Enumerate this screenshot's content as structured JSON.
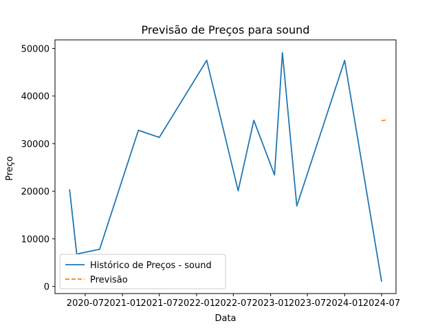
{
  "chart_data": {
    "type": "line",
    "title": "Previsão de Preços para sound",
    "xlabel": "Data",
    "ylabel": "Preço",
    "x_ticks": [
      "2020-07",
      "2021-01",
      "2021-07",
      "2022-01",
      "2022-07",
      "2023-01",
      "2023-07",
      "2024-01",
      "2024-07"
    ],
    "y_ticks": [
      "0",
      "10000",
      "20000",
      "30000",
      "40000",
      "50000"
    ],
    "ylim": [
      -1500,
      51800
    ],
    "xlim": [
      "2020-02-03",
      "2024-09-10"
    ],
    "legend_position": "lower-left",
    "grid": false,
    "series": [
      {
        "name": "Histórico de Preços - sound",
        "color": "#1f77b4",
        "dash": "solid",
        "points": [
          {
            "date": "2020-04-15",
            "value": 20400
          },
          {
            "date": "2020-05-20",
            "value": 6800
          },
          {
            "date": "2020-09-10",
            "value": 7800
          },
          {
            "date": "2021-03-20",
            "value": 32800
          },
          {
            "date": "2021-07-01",
            "value": 31300
          },
          {
            "date": "2022-02-20",
            "value": 47500
          },
          {
            "date": "2022-07-25",
            "value": 20100
          },
          {
            "date": "2022-10-10",
            "value": 34900
          },
          {
            "date": "2023-01-20",
            "value": 23400
          },
          {
            "date": "2023-02-28",
            "value": 49100
          },
          {
            "date": "2023-05-10",
            "value": 16900
          },
          {
            "date": "2024-01-01",
            "value": 47500
          },
          {
            "date": "2024-07-01",
            "value": 1000
          }
        ]
      },
      {
        "name": "Previsão",
        "color": "#ff7f0e",
        "dash": "dashed",
        "points": [
          {
            "date": "2024-07-01",
            "value": 34800
          },
          {
            "date": "2024-07-25",
            "value": 35000
          }
        ]
      }
    ]
  }
}
